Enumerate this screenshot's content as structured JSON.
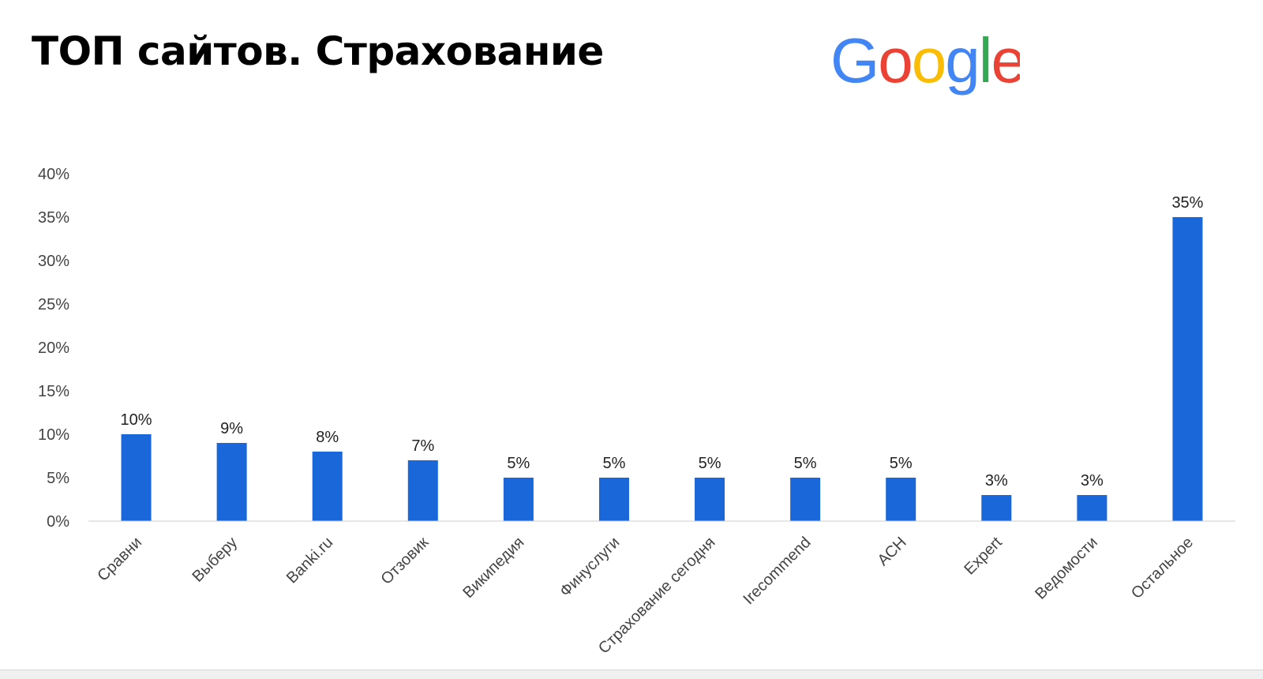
{
  "title": "ТОП сайтов. Страхование",
  "logo": {
    "letters": [
      "G",
      "o",
      "o",
      "g",
      "l",
      "e"
    ],
    "colors": [
      "#4285F4",
      "#EA4335",
      "#FBBC05",
      "#4285F4",
      "#34A853",
      "#EA4335"
    ]
  },
  "chart_data": {
    "type": "bar",
    "title": "",
    "xlabel": "",
    "ylabel": "",
    "categories": [
      "Сравни",
      "Выберу",
      "Banki.ru",
      "Отзовик",
      "Википедия",
      "Финуслуги",
      "Страхование сегодня",
      "Irecommend",
      "АСН",
      "Expert",
      "Ведомости",
      "Остальное"
    ],
    "values": [
      10,
      9,
      8,
      7,
      5,
      5,
      5,
      5,
      5,
      3,
      3,
      35
    ],
    "data_labels": [
      "10%",
      "9%",
      "8%",
      "7%",
      "5%",
      "5%",
      "5%",
      "5%",
      "5%",
      "3%",
      "3%",
      "35%"
    ],
    "yticks": [
      0,
      5,
      10,
      15,
      20,
      25,
      30,
      35,
      40
    ],
    "ytick_labels": [
      "0%",
      "5%",
      "10%",
      "15%",
      "20%",
      "25%",
      "30%",
      "35%",
      "40%"
    ],
    "ylim": [
      0,
      40
    ],
    "grid": false,
    "legend": "none",
    "bar_color": "#1967D8",
    "axis_color": "#cccccc"
  }
}
